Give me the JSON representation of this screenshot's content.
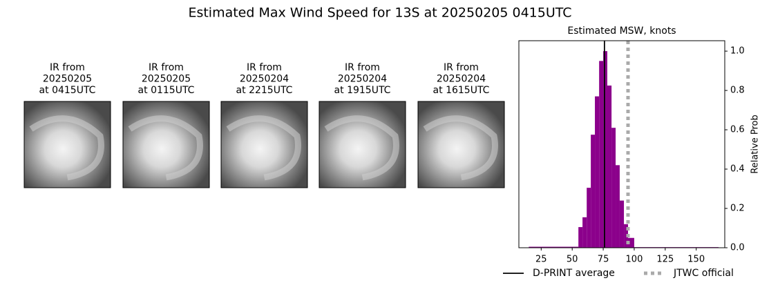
{
  "title": "Estimated Max Wind Speed for 13S at 20250205 0415UTC",
  "panels": [
    {
      "lines": [
        "IR from",
        "20250205",
        "at 0415UTC"
      ]
    },
    {
      "lines": [
        "IR from",
        "20250205",
        "at 0115UTC"
      ]
    },
    {
      "lines": [
        "IR from",
        "20250204",
        "at 2215UTC"
      ]
    },
    {
      "lines": [
        "IR from",
        "20250204",
        "at 1915UTC"
      ]
    },
    {
      "lines": [
        "IR from",
        "20250204",
        "at 1615UTC"
      ]
    }
  ],
  "chart_data": {
    "type": "histogram",
    "title": "Estimated MSW, knots",
    "ylabel": "Relative Prob",
    "bins": [
      15,
      55,
      58.3,
      61.7,
      65,
      68.3,
      71.7,
      75,
      78.3,
      81.7,
      85,
      88.3,
      91.7,
      95,
      100,
      168
    ],
    "values": [
      0.005,
      0.105,
      0.155,
      0.305,
      0.575,
      0.77,
      0.95,
      1.0,
      0.825,
      0.61,
      0.42,
      0.24,
      0.12,
      0.05,
      0.003
    ],
    "color": "#8b008b",
    "xlim": [
      7,
      173
    ],
    "xticks": [
      25,
      50,
      75,
      100,
      125,
      150
    ],
    "ylim": [
      0,
      1.053
    ],
    "yticks": [
      {
        "value": 0,
        "label": "0.0"
      },
      0.2,
      0.4,
      0.6,
      0.8,
      {
        "value": 1,
        "label": "1.0"
      }
    ],
    "lines": [
      {
        "name": "D-PRINT average",
        "value": 76,
        "color": "#000000",
        "style": "solid"
      },
      {
        "name": "JTWC official",
        "value": 95,
        "color": "#aaaaaa",
        "style": "dotted"
      }
    ]
  }
}
